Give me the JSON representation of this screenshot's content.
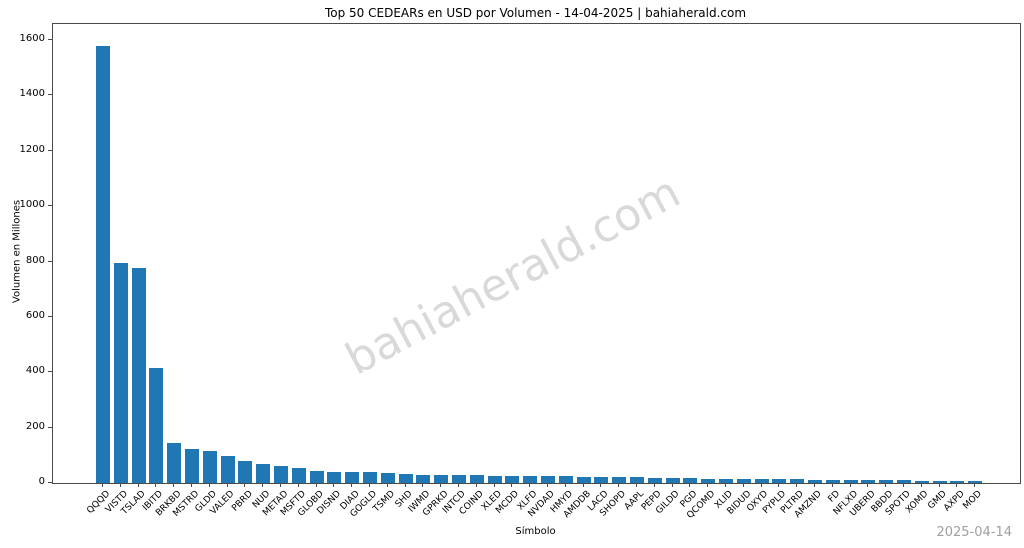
{
  "page": {
    "watermark": "bahiaherald.com",
    "date_stamp": "2025-04-14"
  },
  "colors": {
    "bar": "#1f77b4",
    "axis": "#4a4a4a",
    "watermark": "#c0c0c0",
    "date_stamp": "#a0a0a0"
  },
  "chart_data": {
    "type": "bar",
    "title": "Top 50 CEDEARs en USD por Volumen - 14-04-2025 | bahiaherald.com",
    "xlabel": "Símbolo",
    "ylabel": "Volumen en Millones",
    "grid": false,
    "ylim": [
      0,
      1658
    ],
    "yticks": [
      0,
      200,
      400,
      600,
      800,
      1000,
      1200,
      1400,
      1600
    ],
    "categories": [
      "QQQD",
      "VISTD",
      "TSLAD",
      "IBITD",
      "BRKBD",
      "MSTRD",
      "GLDD",
      "VALED",
      "PBRD",
      "NUD",
      "METAD",
      "MSFTD",
      "GLOBD",
      "DISND",
      "DIAD",
      "GOGLD",
      "TSMD",
      "SHD",
      "IWMD",
      "GPRKD",
      "INTCD",
      "COIND",
      "XLED",
      "MCDD",
      "XLFD",
      "NVDAD",
      "HMYD",
      "AMDDB",
      "LACD",
      "SHOPD",
      "AAPL",
      "PEPD",
      "GILDD",
      "PGD",
      "QCOMD",
      "XLID",
      "BIDUD",
      "OXYD",
      "PYPLD",
      "PLTRD",
      "AMZND",
      "FD",
      "NFLXD",
      "UBERD",
      "BBDD",
      "SPOTD",
      "XOMD",
      "GMD",
      "AXPD",
      "MOD"
    ],
    "values": [
      1580,
      795,
      776,
      416,
      144,
      122,
      117,
      97,
      79,
      67,
      63,
      55,
      43,
      41,
      40,
      39,
      37,
      31,
      30,
      29,
      28,
      28,
      27,
      26,
      25,
      24,
      24,
      23,
      22,
      21,
      20,
      19,
      18,
      17,
      16,
      15,
      15,
      14,
      13,
      13,
      12,
      12,
      11,
      11,
      10,
      10,
      9,
      9,
      8,
      7
    ]
  }
}
